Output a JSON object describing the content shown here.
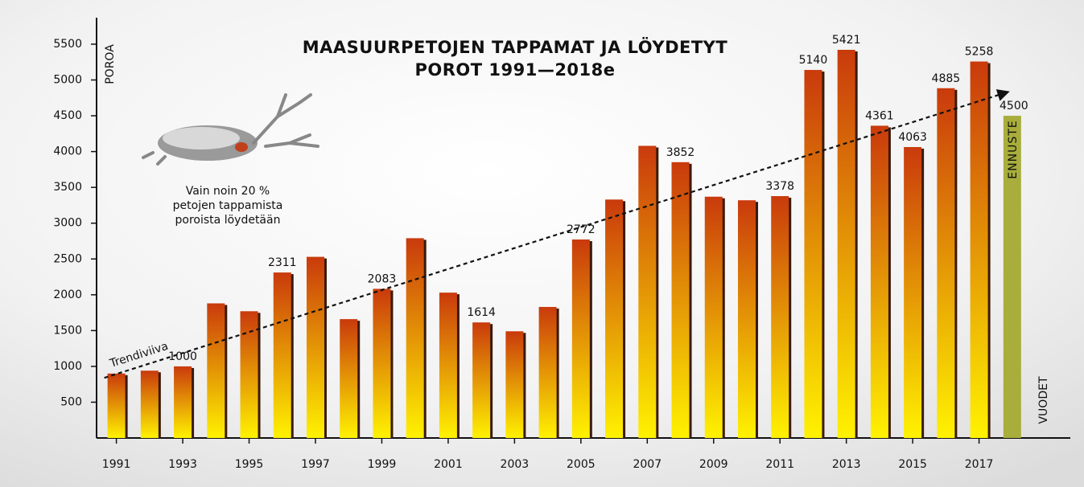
{
  "chart_data": {
    "type": "bar",
    "title": [
      "MAASUURPETOJEN TAPPAMAT JA LÖYDETYT",
      "POROT 1991—2018e"
    ],
    "y_axis_label": "POROA",
    "x_axis_label": "VUODET",
    "categories": [
      "1991",
      null,
      "1993",
      null,
      "1995",
      null,
      "1997",
      null,
      "1999",
      null,
      "2001",
      null,
      "2003",
      null,
      "2005",
      null,
      "2007",
      null,
      "2009",
      null,
      "2011",
      null,
      "2013",
      null,
      "2015",
      null,
      "2017",
      null
    ],
    "values": [
      900,
      940,
      1000,
      1880,
      1770,
      2311,
      2530,
      1660,
      2083,
      2790,
      2030,
      1614,
      1490,
      1830,
      2772,
      3330,
      4080,
      3852,
      3370,
      3320,
      3378,
      5140,
      5421,
      4361,
      4063,
      4885,
      5258,
      4500
    ],
    "value_labels": [
      null,
      null,
      "1000",
      null,
      null,
      "2311",
      null,
      null,
      "2083",
      null,
      null,
      "1614",
      null,
      null,
      "2772",
      null,
      null,
      "3852",
      null,
      null,
      "3378",
      "5140",
      "5421",
      "4361",
      "4063",
      "4885",
      "5258",
      "4500"
    ],
    "gradient": [
      "#c93a0c",
      "#fff200"
    ],
    "forecast": {
      "label": "ENNUSTE",
      "color": "#a8ad3c"
    },
    "trendline": {
      "label": "Trendiviiva",
      "values": [
        840,
        4830
      ]
    },
    "annotation": [
      "Vain noin 20 %",
      "petojen tappamista",
      "poroista löydetään"
    ],
    "ylim": [
      0,
      5870
    ],
    "yticks": [
      500,
      1000,
      1500,
      2000,
      2500,
      3000,
      3500,
      4000,
      4500,
      5000,
      5500
    ]
  }
}
